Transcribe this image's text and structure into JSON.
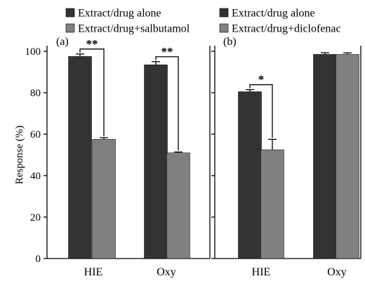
{
  "colors": {
    "alone": "#333333",
    "combo": "#808080",
    "frame": "#000000"
  },
  "chart_data": [
    {
      "panel_label": "(a)",
      "type": "bar",
      "categories": [
        "HIE",
        "Oxy"
      ],
      "series": [
        {
          "name": "Extract/drug alone",
          "values": [
            97.5,
            93.5
          ],
          "errors": [
            1.2,
            1.5
          ]
        },
        {
          "name": "Extract/drug+salbutamol",
          "values": [
            57.5,
            51.0
          ],
          "errors": [
            0.8,
            0.4
          ]
        }
      ],
      "significance": [
        {
          "category": "HIE",
          "label": "**"
        },
        {
          "category": "Oxy",
          "label": "**"
        }
      ],
      "ylabel": "Response (%)",
      "ylim": [
        0,
        100
      ],
      "yticks": [
        0,
        20,
        40,
        60,
        80,
        100
      ],
      "legend_position": "top"
    },
    {
      "panel_label": "(b)",
      "type": "bar",
      "categories": [
        "HIE",
        "Oxy"
      ],
      "series": [
        {
          "name": "Extract/drug alone",
          "values": [
            80.5,
            98.5
          ],
          "errors": [
            1.0,
            0.8
          ]
        },
        {
          "name": "Extract/drug+diclofenac",
          "values": [
            52.5,
            98.5
          ],
          "errors": [
            5.0,
            0.7
          ]
        }
      ],
      "significance": [
        {
          "category": "HIE",
          "label": "*"
        }
      ],
      "ylim": [
        0,
        100
      ],
      "legend_position": "top"
    }
  ]
}
